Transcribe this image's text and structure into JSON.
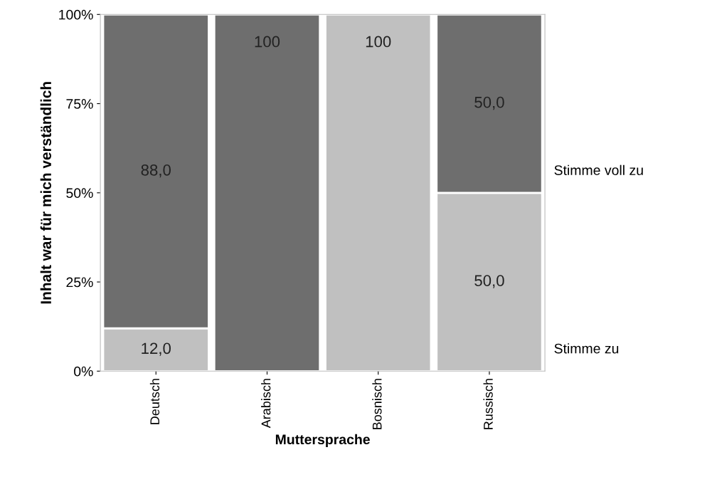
{
  "chart_data": {
    "type": "bar",
    "stacked": true,
    "categories": [
      "Deutsch",
      "Arabisch",
      "Bosnisch",
      "Russisch"
    ],
    "xlabel": "Muttersprache",
    "ylabel": "Inhalt war für mich verständlich",
    "series": [
      {
        "name": "Stimme zu",
        "color": "#c0c0c0",
        "values": [
          12.0,
          null,
          100,
          50.0
        ],
        "value_labels": [
          "12,0",
          null,
          "100",
          "50,0"
        ]
      },
      {
        "name": "Stimme voll zu",
        "color": "#6e6e6e",
        "values": [
          88.0,
          100,
          null,
          50.0
        ],
        "value_labels": [
          "88,0",
          "100",
          null,
          "50,0"
        ]
      }
    ],
    "ylim": [
      0,
      100
    ],
    "yticks": [
      {
        "value": 0,
        "label": "0%"
      },
      {
        "value": 25,
        "label": "25%"
      },
      {
        "value": 50,
        "label": "50%"
      },
      {
        "value": 75,
        "label": "75%"
      },
      {
        "value": 100,
        "label": "100%"
      }
    ],
    "grid": false,
    "legend": "right"
  }
}
